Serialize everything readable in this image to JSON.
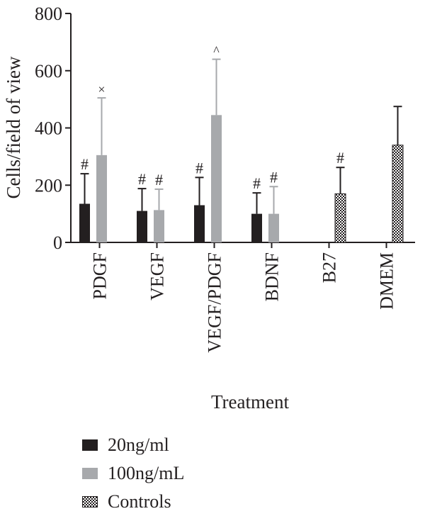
{
  "chart_data": {
    "type": "bar",
    "title": "",
    "xlabel": "Treatment",
    "ylabel": "Cells/field of view",
    "ylim": [
      0,
      800
    ],
    "yticks": [
      0,
      200,
      400,
      600,
      800
    ],
    "grid": false,
    "legend_position": "bottom-left",
    "categories": [
      "PDGF",
      "VEGF",
      "VEGF/PDGF",
      "BDNF",
      "B27",
      "DMEM"
    ],
    "series": [
      {
        "name": "20ng/ml",
        "color": "#231f20",
        "pattern": "solid",
        "values": [
          135,
          110,
          130,
          100,
          null,
          null
        ],
        "errors": [
          105,
          78,
          97,
          73,
          null,
          null
        ],
        "annotations": [
          "#",
          "#",
          "#",
          "#",
          null,
          null
        ]
      },
      {
        "name": "100ng/mL",
        "color": "#a7a9ac",
        "pattern": "solid",
        "values": [
          305,
          113,
          445,
          100,
          null,
          null
        ],
        "errors": [
          200,
          73,
          195,
          95,
          null,
          null
        ],
        "annotations": [
          "×",
          "#",
          "^",
          "#",
          null,
          null
        ]
      },
      {
        "name": "Controls",
        "color": "#231f20",
        "pattern": "checker",
        "values": [
          null,
          null,
          null,
          null,
          170,
          340
        ],
        "errors": [
          null,
          null,
          null,
          null,
          92,
          135
        ],
        "annotations": [
          null,
          null,
          null,
          null,
          "#",
          null
        ]
      }
    ]
  }
}
